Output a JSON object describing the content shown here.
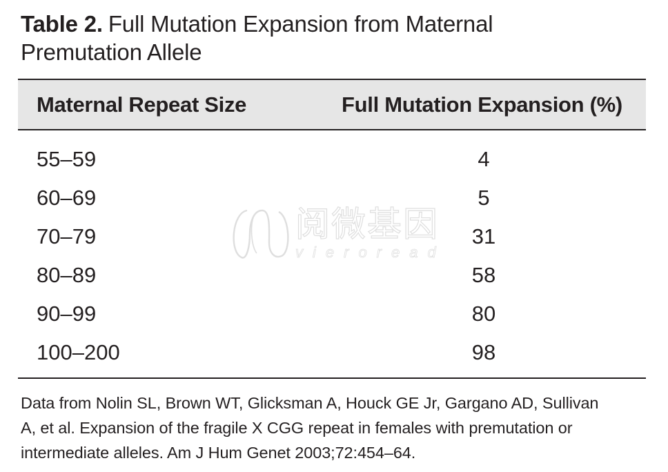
{
  "caption": {
    "label": "Table 2.",
    "title_line1": "Full Mutation Expansion from Maternal",
    "title_line2": "Premutation Allele"
  },
  "table": {
    "headers": [
      "Maternal Repeat Size",
      "Full Mutation Expansion (%)"
    ],
    "rows": [
      {
        "size": "55–59",
        "expansion": "4"
      },
      {
        "size": "60–69",
        "expansion": "5"
      },
      {
        "size": "70–79",
        "expansion": "31"
      },
      {
        "size": "80–89",
        "expansion": "58"
      },
      {
        "size": "90–99",
        "expansion": "80"
      },
      {
        "size": "100–200",
        "expansion": "98"
      }
    ]
  },
  "footnote": {
    "line1": "Data from Nolin SL, Brown WT, Glicksman A, Houck GE Jr, Gargano AD, Sullivan",
    "line2": "A, et al. Expansion of the fragile X CGG repeat in females with premutation or",
    "line3": "intermediate alleles. Am J Hum Genet 2003;72:454–64."
  },
  "watermark": {
    "text": "阅微基因",
    "sub": "vieroread",
    "logo_icon": "wave-logo-icon"
  },
  "colors": {
    "text": "#231f20",
    "header_bg": "#e6e6e6",
    "rule": "#231f20"
  }
}
